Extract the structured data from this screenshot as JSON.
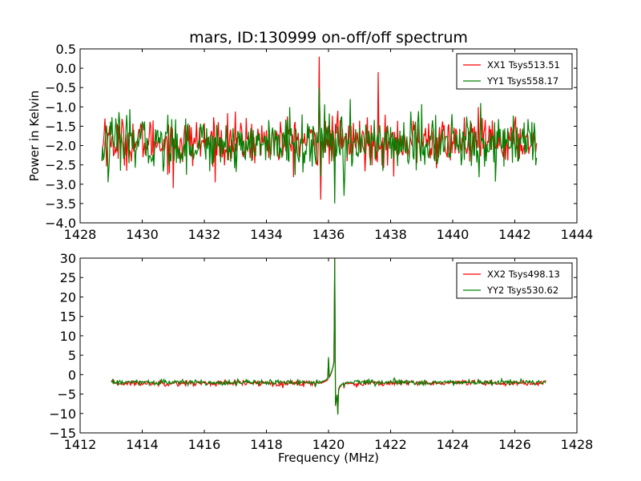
{
  "title": "mars, ID:130999 on-off/off spectrum",
  "colors": {
    "XX": "#ff0000",
    "YY": "#008000"
  },
  "chart_data": [
    {
      "type": "line",
      "ylabel": "Power in Kelvin",
      "xlabel": "",
      "xlim": [
        1428,
        1444
      ],
      "ylim": [
        -4.0,
        0.5
      ],
      "xticks": [
        1428,
        1430,
        1432,
        1434,
        1436,
        1438,
        1440,
        1442,
        1444
      ],
      "yticks": [
        0.5,
        0.0,
        -0.5,
        -1.0,
        -1.5,
        -2.0,
        -2.5,
        -3.0,
        -3.5,
        -4.0
      ],
      "xtick_labels": [
        "1428",
        "1430",
        "1432",
        "1434",
        "1436",
        "1438",
        "1440",
        "1442",
        "1444"
      ],
      "ytick_labels": [
        "0.5",
        "0.0",
        "−0.5",
        "−1.0",
        "−1.5",
        "−2.0",
        "−2.5",
        "−3.0",
        "−3.5",
        "−4.0"
      ],
      "legend_position": "top-right",
      "series": [
        {
          "name": "XX1 Tsys513.51",
          "color": "#ff0000",
          "x_range": [
            1428.7,
            1442.7
          ],
          "baseline": -1.9,
          "noise": 0.3,
          "features": [
            {
              "x": 1428.7,
              "y": -2.4
            },
            {
              "x": 1428.8,
              "y": -1.3
            },
            {
              "x": 1431.0,
              "y": -3.1
            },
            {
              "x": 1435.7,
              "y": 0.3
            },
            {
              "x": 1435.75,
              "y": -3.4
            },
            {
              "x": 1437.6,
              "y": -0.1
            },
            {
              "x": 1436.3,
              "y": -1.1
            },
            {
              "x": 1438.1,
              "y": -2.8
            }
          ]
        },
        {
          "name": "YY1 Tsys558.17",
          "color": "#008000",
          "x_range": [
            1428.7,
            1442.7
          ],
          "baseline": -1.95,
          "noise": 0.35,
          "features": [
            {
              "x": 1428.7,
              "y": -2.4
            },
            {
              "x": 1428.9,
              "y": -2.95
            },
            {
              "x": 1435.7,
              "y": -0.5
            },
            {
              "x": 1435.75,
              "y": -2.8
            },
            {
              "x": 1436.2,
              "y": -3.5
            },
            {
              "x": 1436.5,
              "y": -3.3
            },
            {
              "x": 1436.7,
              "y": -0.8
            },
            {
              "x": 1440.9,
              "y": -0.9
            }
          ]
        }
      ]
    },
    {
      "type": "line",
      "ylabel": "",
      "xlabel": "Frequency (MHz)",
      "xlim": [
        1412,
        1428
      ],
      "ylim": [
        -15,
        30
      ],
      "xticks": [
        1412,
        1414,
        1416,
        1418,
        1420,
        1422,
        1424,
        1426,
        1428
      ],
      "yticks": [
        30,
        25,
        20,
        15,
        10,
        5,
        0,
        -5,
        -10,
        -15
      ],
      "xtick_labels": [
        "1412",
        "1414",
        "1416",
        "1418",
        "1420",
        "1422",
        "1424",
        "1426",
        "1428"
      ],
      "ytick_labels": [
        "30",
        "25",
        "20",
        "15",
        "10",
        "5",
        "0",
        "−5",
        "−10",
        "−15"
      ],
      "legend_position": "top-right",
      "series": [
        {
          "name": "XX2 Tsys498.13",
          "color": "#ff0000",
          "x_range": [
            1413.0,
            1427.0
          ],
          "baseline": -2.2,
          "noise": 0.35,
          "features": [
            {
              "x": 1420.0,
              "y": 4.0
            },
            {
              "x": 1420.2,
              "y": 30
            },
            {
              "x": 1420.3,
              "y": -10
            },
            {
              "x": 1420.5,
              "y": -3.5
            }
          ]
        },
        {
          "name": "YY2 Tsys530.62",
          "color": "#008000",
          "x_range": [
            1413.0,
            1427.0
          ],
          "baseline": -2.0,
          "noise": 0.35,
          "features": [
            {
              "x": 1420.0,
              "y": 4.5
            },
            {
              "x": 1420.2,
              "y": 30
            },
            {
              "x": 1420.3,
              "y": -10.3
            },
            {
              "x": 1420.5,
              "y": -3.2
            }
          ]
        }
      ]
    }
  ]
}
